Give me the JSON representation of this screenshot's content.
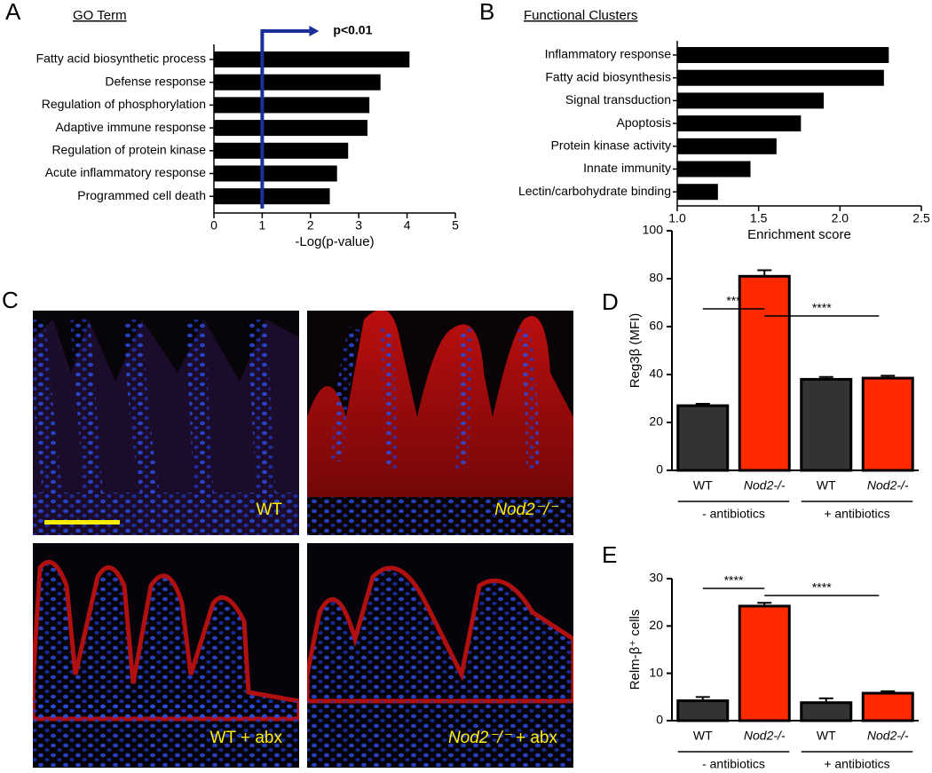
{
  "chart_data": [
    {
      "type": "barh",
      "panel": "A",
      "title": "GO Term",
      "categories": [
        "Fatty acid biosynthetic process",
        "Defense response",
        "Regulation of phosphorylation",
        "Adaptive immune response",
        "Regulation of protein kinase",
        "Acute inflammatory response",
        "Programmed cell death"
      ],
      "values": [
        4.05,
        3.45,
        3.22,
        3.18,
        2.78,
        2.55,
        2.4
      ],
      "color": "#000000",
      "xlim": [
        0,
        5
      ],
      "xticks": [
        0,
        1,
        2,
        3,
        4,
        5
      ],
      "xlabel": "-Log(p-value)",
      "threshold": 1,
      "threshold_label": "p<0.01",
      "threshold_color": "#1a2f9a"
    },
    {
      "type": "barh",
      "panel": "B",
      "title": "Functional Clusters",
      "categories": [
        "Inflammatory response",
        "Fatty acid biosynthesis",
        "Signal transduction",
        "Apoptosis",
        "Protein kinase activity",
        "Innate immunity",
        "Lectin/carbohydrate binding"
      ],
      "values": [
        2.3,
        2.27,
        1.9,
        1.76,
        1.61,
        1.45,
        1.25
      ],
      "color": "#000000",
      "xlim": [
        1,
        2.5
      ],
      "xticks": [
        {
          "value": 1,
          "label": "1.0"
        },
        1.5,
        {
          "value": 2,
          "label": "2.0"
        },
        2.5
      ],
      "xlabel": "Enrichment score"
    },
    {
      "type": "bar",
      "panel": "D",
      "ylabel": "Reg3β (MFI)",
      "categories": [
        "WT",
        "Nod2-/-",
        "WT",
        "Nod2-/-"
      ],
      "values": [
        27,
        81,
        38,
        38.5
      ],
      "errors": [
        0.8,
        2.5,
        1,
        1
      ],
      "colors": [
        "#333333",
        "#ff2a00",
        "#333333",
        "#ff2a00"
      ],
      "groups": [
        "- antibiotics",
        "+ antibiotics"
      ],
      "annotations": [
        "***",
        "****"
      ],
      "ylim": [
        0,
        100
      ],
      "yticks": [
        0,
        20,
        40,
        60,
        80,
        100
      ]
    },
    {
      "type": "bar",
      "panel": "E",
      "ylabel": "Relm-β⁺ cells",
      "categories": [
        "WT",
        "Nod2-/-",
        "WT",
        "Nod2-/-"
      ],
      "values": [
        4.2,
        24.2,
        3.8,
        5.8
      ],
      "errors": [
        0.8,
        0.7,
        0.9,
        0.4
      ],
      "colors": [
        "#333333",
        "#ff2a00",
        "#333333",
        "#ff2a00"
      ],
      "groups": [
        "- antibiotics",
        "+ antibiotics"
      ],
      "annotations": [
        "****",
        "****"
      ],
      "ylim": [
        0,
        30
      ],
      "yticks": [
        0,
        10,
        20,
        30
      ]
    }
  ],
  "micrographs": {
    "panel": "C",
    "label_color": "#ffee00",
    "images": [
      {
        "label": [
          {
            "text": "WT",
            "italic": false
          }
        ]
      },
      {
        "label": [
          {
            "text": "Nod2⁻/⁻",
            "italic": true
          }
        ]
      },
      {
        "label": [
          {
            "text": "WT + abx",
            "italic": false
          }
        ]
      },
      {
        "label": [
          {
            "text": "Nod2⁻/⁻",
            "italic": true
          },
          {
            "text": " + abx",
            "italic": false
          }
        ]
      }
    ]
  }
}
